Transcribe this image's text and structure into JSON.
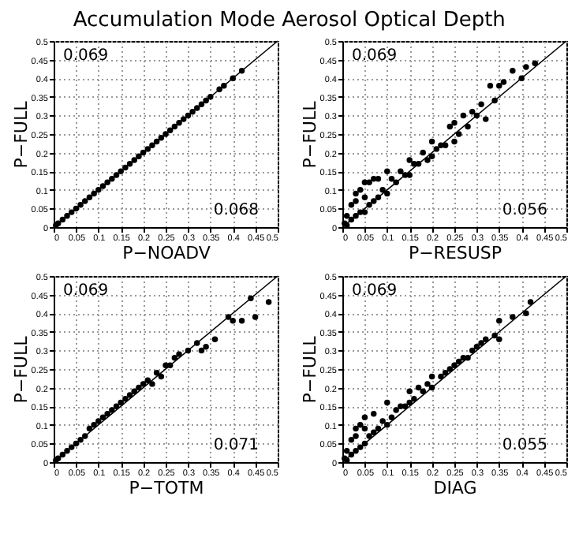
{
  "chart_data": [
    {
      "type": "scatter",
      "title": "Accumulation Mode Aerosol Optical Depth",
      "xlabel": "P−NOADV",
      "ylabel": "P−FULL",
      "annotations": [
        "0.069",
        "0.068"
      ],
      "xlim": [
        0,
        0.5
      ],
      "ylim": [
        0,
        0.5
      ],
      "xticks": [
        0,
        0.05,
        0.1,
        0.15,
        0.2,
        0.25,
        0.3,
        0.35,
        0.4,
        0.45,
        0.5
      ],
      "yticks": [
        0,
        0.05,
        0.1,
        0.15,
        0.2,
        0.25,
        0.3,
        0.35,
        0.4,
        0.45,
        0.5
      ],
      "grid": true,
      "series": [
        {
          "type": "line",
          "color": "#000000",
          "line_style": "solid",
          "x": [
            0,
            0.5
          ],
          "values": [
            0,
            0.5
          ]
        },
        {
          "type": "scatter",
          "marker": "circle",
          "color": "#000000",
          "x": [
            0.005,
            0.01,
            0.02,
            0.03,
            0.04,
            0.05,
            0.06,
            0.07,
            0.08,
            0.09,
            0.1,
            0.11,
            0.12,
            0.13,
            0.14,
            0.15,
            0.16,
            0.17,
            0.18,
            0.19,
            0.2,
            0.21,
            0.22,
            0.23,
            0.24,
            0.25,
            0.26,
            0.27,
            0.28,
            0.29,
            0.3,
            0.31,
            0.32,
            0.33,
            0.34,
            0.35,
            0.37,
            0.38,
            0.4,
            0.42
          ],
          "values": [
            0.005,
            0.01,
            0.02,
            0.03,
            0.04,
            0.05,
            0.06,
            0.07,
            0.08,
            0.09,
            0.1,
            0.11,
            0.12,
            0.13,
            0.14,
            0.15,
            0.16,
            0.17,
            0.18,
            0.19,
            0.2,
            0.21,
            0.22,
            0.23,
            0.24,
            0.25,
            0.26,
            0.27,
            0.28,
            0.29,
            0.3,
            0.31,
            0.32,
            0.33,
            0.34,
            0.35,
            0.37,
            0.38,
            0.4,
            0.42
          ]
        }
      ]
    },
    {
      "type": "scatter",
      "xlabel": "P−RESUSP",
      "ylabel": "P−FULL",
      "annotations": [
        "0.069",
        "0.056"
      ],
      "xlim": [
        0,
        0.5
      ],
      "ylim": [
        0,
        0.5
      ],
      "xticks": [
        0,
        0.05,
        0.1,
        0.15,
        0.2,
        0.25,
        0.3,
        0.35,
        0.4,
        0.45,
        0.5
      ],
      "yticks": [
        0,
        0.05,
        0.1,
        0.15,
        0.2,
        0.25,
        0.3,
        0.35,
        0.4,
        0.45,
        0.5
      ],
      "grid": true,
      "series": [
        {
          "type": "line",
          "color": "#000000",
          "line_style": "solid",
          "x": [
            0,
            0.5
          ],
          "values": [
            0,
            0.5
          ]
        },
        {
          "type": "scatter",
          "marker": "circle",
          "color": "#000000",
          "x": [
            0.005,
            0.01,
            0.01,
            0.02,
            0.02,
            0.03,
            0.03,
            0.03,
            0.04,
            0.04,
            0.05,
            0.05,
            0.05,
            0.06,
            0.06,
            0.07,
            0.07,
            0.08,
            0.08,
            0.09,
            0.1,
            0.1,
            0.11,
            0.12,
            0.13,
            0.14,
            0.15,
            0.15,
            0.16,
            0.17,
            0.18,
            0.19,
            0.2,
            0.2,
            0.21,
            0.22,
            0.23,
            0.24,
            0.25,
            0.25,
            0.26,
            0.27,
            0.28,
            0.29,
            0.3,
            0.31,
            0.32,
            0.33,
            0.34,
            0.35,
            0.36,
            0.38,
            0.4,
            0.41,
            0.43
          ],
          "values": [
            0.01,
            0.005,
            0.03,
            0.02,
            0.06,
            0.03,
            0.07,
            0.09,
            0.04,
            0.1,
            0.04,
            0.08,
            0.12,
            0.06,
            0.12,
            0.07,
            0.13,
            0.08,
            0.13,
            0.1,
            0.09,
            0.15,
            0.13,
            0.12,
            0.15,
            0.14,
            0.14,
            0.18,
            0.17,
            0.17,
            0.2,
            0.18,
            0.19,
            0.23,
            0.21,
            0.22,
            0.22,
            0.27,
            0.23,
            0.28,
            0.25,
            0.3,
            0.27,
            0.31,
            0.3,
            0.33,
            0.29,
            0.38,
            0.34,
            0.38,
            0.39,
            0.42,
            0.4,
            0.43,
            0.44
          ]
        }
      ]
    },
    {
      "type": "scatter",
      "xlabel": "P−TOTM",
      "ylabel": "P−FULL",
      "annotations": [
        "0.069",
        "0.071"
      ],
      "xlim": [
        0,
        0.5
      ],
      "ylim": [
        0,
        0.5
      ],
      "xticks": [
        0,
        0.05,
        0.1,
        0.15,
        0.2,
        0.25,
        0.3,
        0.35,
        0.4,
        0.45,
        0.5
      ],
      "yticks": [
        0,
        0.05,
        0.1,
        0.15,
        0.2,
        0.25,
        0.3,
        0.35,
        0.4,
        0.45,
        0.5
      ],
      "grid": true,
      "series": [
        {
          "type": "line",
          "color": "#000000",
          "line_style": "solid",
          "x": [
            0,
            0.5
          ],
          "values": [
            0,
            0.5
          ]
        },
        {
          "type": "scatter",
          "marker": "circle",
          "color": "#000000",
          "x": [
            0.005,
            0.01,
            0.02,
            0.03,
            0.04,
            0.05,
            0.06,
            0.07,
            0.08,
            0.09,
            0.1,
            0.11,
            0.12,
            0.13,
            0.14,
            0.15,
            0.16,
            0.17,
            0.18,
            0.19,
            0.2,
            0.21,
            0.22,
            0.23,
            0.24,
            0.25,
            0.26,
            0.27,
            0.28,
            0.3,
            0.32,
            0.33,
            0.34,
            0.36,
            0.39,
            0.4,
            0.42,
            0.44,
            0.45,
            0.48
          ],
          "values": [
            0.005,
            0.01,
            0.02,
            0.03,
            0.04,
            0.05,
            0.06,
            0.07,
            0.09,
            0.1,
            0.11,
            0.12,
            0.13,
            0.14,
            0.15,
            0.16,
            0.17,
            0.18,
            0.19,
            0.2,
            0.21,
            0.22,
            0.21,
            0.24,
            0.23,
            0.26,
            0.26,
            0.28,
            0.29,
            0.3,
            0.32,
            0.3,
            0.31,
            0.33,
            0.39,
            0.38,
            0.38,
            0.44,
            0.39,
            0.43
          ]
        }
      ]
    },
    {
      "type": "scatter",
      "xlabel": "DIAG",
      "ylabel": "P−FULL",
      "annotations": [
        "0.069",
        "0.055"
      ],
      "xlim": [
        0,
        0.5
      ],
      "ylim": [
        0,
        0.5
      ],
      "xticks": [
        0,
        0.05,
        0.1,
        0.15,
        0.2,
        0.25,
        0.3,
        0.35,
        0.4,
        0.45,
        0.5
      ],
      "yticks": [
        0,
        0.05,
        0.1,
        0.15,
        0.2,
        0.25,
        0.3,
        0.35,
        0.4,
        0.45,
        0.5
      ],
      "grid": true,
      "series": [
        {
          "type": "line",
          "color": "#000000",
          "line_style": "solid",
          "x": [
            0,
            0.5
          ],
          "values": [
            0,
            0.5
          ]
        },
        {
          "type": "scatter",
          "marker": "circle",
          "color": "#000000",
          "x": [
            0.005,
            0.01,
            0.01,
            0.02,
            0.02,
            0.03,
            0.03,
            0.03,
            0.04,
            0.04,
            0.05,
            0.05,
            0.05,
            0.06,
            0.07,
            0.07,
            0.08,
            0.09,
            0.1,
            0.1,
            0.11,
            0.12,
            0.13,
            0.14,
            0.15,
            0.15,
            0.16,
            0.17,
            0.18,
            0.19,
            0.2,
            0.2,
            0.22,
            0.23,
            0.24,
            0.25,
            0.26,
            0.27,
            0.28,
            0.29,
            0.3,
            0.31,
            0.32,
            0.34,
            0.35,
            0.35,
            0.38,
            0.41,
            0.42
          ],
          "values": [
            0.01,
            0.005,
            0.03,
            0.02,
            0.06,
            0.03,
            0.07,
            0.09,
            0.04,
            0.1,
            0.05,
            0.09,
            0.12,
            0.07,
            0.08,
            0.13,
            0.09,
            0.11,
            0.1,
            0.16,
            0.12,
            0.14,
            0.15,
            0.15,
            0.16,
            0.19,
            0.17,
            0.2,
            0.19,
            0.21,
            0.2,
            0.23,
            0.23,
            0.24,
            0.25,
            0.26,
            0.27,
            0.28,
            0.28,
            0.3,
            0.31,
            0.32,
            0.33,
            0.34,
            0.33,
            0.38,
            0.39,
            0.4,
            0.43
          ]
        }
      ]
    }
  ]
}
